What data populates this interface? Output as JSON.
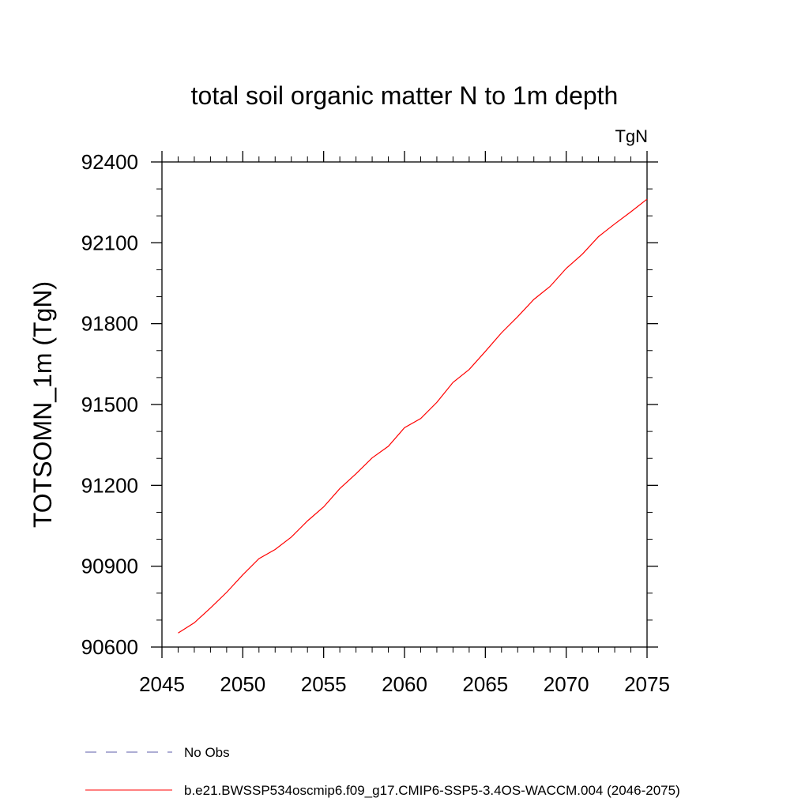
{
  "chart_data": {
    "type": "line",
    "title": "total soil organic matter N to 1m depth",
    "units": "TgN",
    "ylabel": "TOTSOMN_1m  (TgN)",
    "xlabel": "",
    "xlim": [
      2045,
      2075
    ],
    "ylim": [
      90600,
      92400
    ],
    "x_ticks": [
      2045,
      2050,
      2055,
      2060,
      2065,
      2070,
      2075
    ],
    "y_ticks": [
      90600,
      90900,
      91200,
      91500,
      91800,
      92100,
      92400
    ],
    "grid": false,
    "legend_position": "bottom",
    "legend": [
      {
        "label": "No Obs",
        "color": "#5c5ca8",
        "style": "dashed"
      },
      {
        "label": "b.e21.BWSSP534oscmip6.f09_g17.CMIP6-SSP5-3.4OS-WACCM.004 (2046-2075)",
        "color": "#ff0000",
        "style": "solid"
      }
    ],
    "series": [
      {
        "color": "#ff0000",
        "x": [
          2046,
          2047,
          2048,
          2049,
          2050,
          2051,
          2052,
          2053,
          2054,
          2055,
          2056,
          2057,
          2058,
          2059,
          2060,
          2061,
          2062,
          2063,
          2064,
          2065,
          2066,
          2067,
          2068,
          2069,
          2070,
          2071,
          2072,
          2073,
          2074,
          2075
        ],
        "y": [
          90652,
          90690,
          90745,
          90803,
          90868,
          90928,
          90962,
          91008,
          91068,
          91120,
          91188,
          91243,
          91302,
          91345,
          91414,
          91448,
          91508,
          91582,
          91630,
          91697,
          91766,
          91826,
          91890,
          91938,
          92005,
          92058,
          92123,
          92170,
          92215,
          92262
        ]
      }
    ]
  }
}
